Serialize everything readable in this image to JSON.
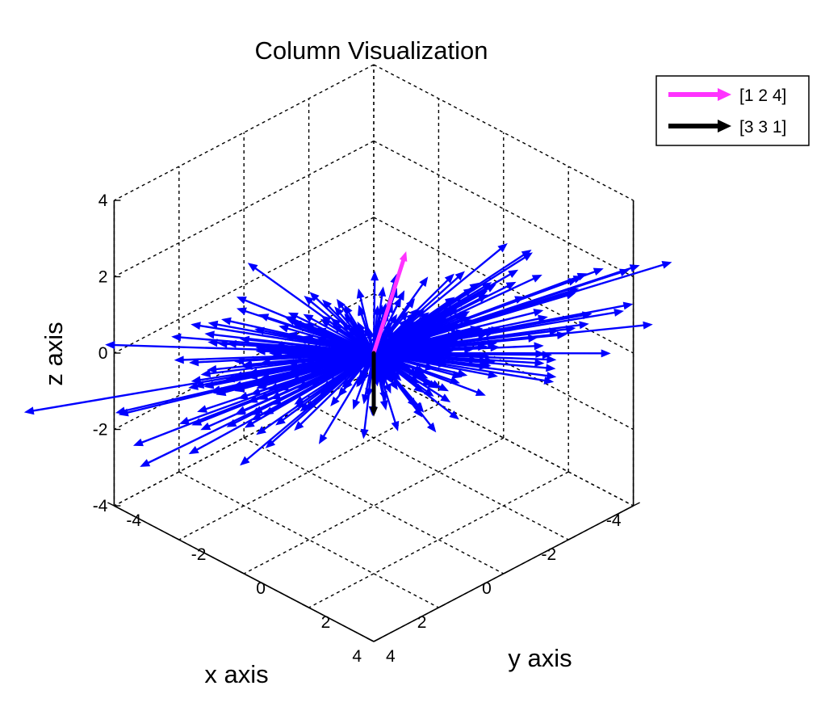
{
  "chart_data": {
    "type": "quiver3d",
    "title": "Column Visualization",
    "xlabel": "x axis",
    "ylabel": "y axis",
    "zlabel": "z axis",
    "xlim": [
      -4,
      4
    ],
    "ylim": [
      -4,
      4
    ],
    "zlim": [
      -4,
      4
    ],
    "xticks": [
      "-4",
      "-2",
      "0",
      "2",
      "4"
    ],
    "yticks": [
      "-4",
      "-2",
      "0",
      "2",
      "4"
    ],
    "zticks": [
      "-4",
      "-2",
      "0",
      "2",
      "4"
    ],
    "grid": "on (dashed)",
    "box": "on",
    "legend_position": "top-right",
    "series": [
      {
        "name": "[1 2 4]",
        "color": "#ff33ff",
        "vector": [
          1,
          2,
          4
        ]
      },
      {
        "name": "[3 3 1]",
        "color": "#000000",
        "vector": [
          3,
          3,
          1
        ]
      },
      {
        "name": "",
        "color": "#0000ff",
        "description_count": 400
      }
    ]
  }
}
